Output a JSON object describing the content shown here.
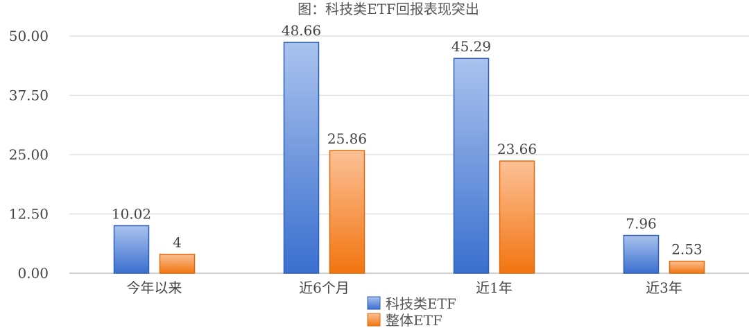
{
  "chart_data": {
    "type": "bar",
    "title": "图：科技类ETF回报表现突出",
    "categories": [
      "今年以来",
      "近6个月",
      "近1年",
      "近3年"
    ],
    "series": [
      {
        "name": "科技类ETF",
        "values": [
          10.02,
          48.66,
          45.29,
          7.96
        ],
        "labels": [
          "10.02",
          "48.66",
          "45.29",
          "7.96"
        ],
        "color": "#3a70d0"
      },
      {
        "name": "整体ETF",
        "values": [
          4,
          25.86,
          23.66,
          2.53
        ],
        "labels": [
          "4",
          "25.86",
          "23.66",
          "2.53"
        ],
        "color": "#f37a12"
      }
    ],
    "yticks": [
      "0.00",
      "12.50",
      "25.00",
      "37.50",
      "50.00"
    ],
    "ylim": [
      0,
      50
    ],
    "grid": true,
    "legend": "bottom-center",
    "xlabel": "",
    "ylabel": ""
  }
}
